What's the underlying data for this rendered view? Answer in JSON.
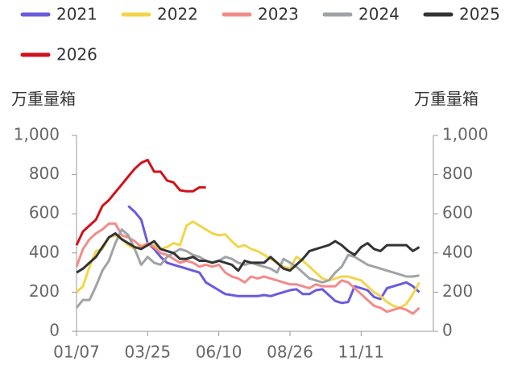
{
  "chart_data": {
    "type": "line",
    "ylabel": "万重量箱",
    "y2label": "万重量箱",
    "categories": [
      "01/07",
      null,
      null,
      null,
      null,
      null,
      null,
      null,
      null,
      null,
      null,
      "03/25",
      null,
      null,
      null,
      null,
      null,
      null,
      null,
      null,
      null,
      null,
      "06/10",
      null,
      null,
      null,
      null,
      null,
      null,
      null,
      null,
      null,
      null,
      "08/26",
      null,
      null,
      null,
      null,
      null,
      null,
      null,
      null,
      null,
      null,
      "11/11",
      null,
      null,
      null,
      null,
      null,
      null,
      null,
      null,
      null
    ],
    "ylim": [
      0,
      1000
    ],
    "yticks": [
      0,
      200,
      400,
      600,
      800,
      {
        "value": 1000,
        "label": "1,000"
      }
    ],
    "y2lim": [
      0,
      1000
    ],
    "y2ticks": [
      0,
      200,
      400,
      600,
      800,
      {
        "value": 1000,
        "label": "1,000"
      }
    ],
    "grid": false,
    "series": [
      {
        "name": "2021",
        "color": "#6a5ae0",
        "values": [
          null,
          null,
          null,
          null,
          null,
          null,
          null,
          null,
          640,
          610,
          570,
          450,
          420,
          380,
          350,
          340,
          330,
          320,
          310,
          300,
          250,
          230,
          210,
          190,
          185,
          180,
          180,
          180,
          180,
          185,
          180,
          190,
          200,
          210,
          215,
          190,
          190,
          210,
          215,
          185,
          155,
          145,
          150,
          230,
          220,
          210,
          175,
          165,
          220,
          230,
          240,
          250,
          230,
          200
        ]
      },
      {
        "name": "2022",
        "color": "#f2d54a",
        "values": [
          200,
          230,
          330,
          410,
          420,
          480,
          490,
          470,
          440,
          420,
          440,
          440,
          440,
          420,
          430,
          450,
          440,
          540,
          560,
          540,
          520,
          500,
          490,
          495,
          460,
          430,
          440,
          420,
          410,
          390,
          370,
          350,
          330,
          320,
          380,
          360,
          330,
          300,
          270,
          260,
          270,
          280,
          280,
          270,
          260,
          230,
          200,
          180,
          150,
          130,
          120,
          140,
          190,
          250
        ]
      },
      {
        "name": "2023",
        "color": "#f28b8b",
        "values": [
          330,
          420,
          470,
          500,
          520,
          550,
          550,
          490,
          480,
          460,
          430,
          450,
          430,
          400,
          390,
          370,
          350,
          360,
          350,
          330,
          340,
          330,
          340,
          300,
          280,
          270,
          250,
          280,
          270,
          280,
          270,
          260,
          250,
          240,
          240,
          230,
          220,
          240,
          230,
          230,
          230,
          260,
          250,
          220,
          190,
          160,
          130,
          120,
          100,
          110,
          120,
          110,
          90,
          120
        ]
      },
      {
        "name": "2024",
        "color": "#a0a3a6",
        "values": [
          120,
          160,
          160,
          230,
          310,
          360,
          450,
          520,
          490,
          420,
          340,
          380,
          350,
          340,
          380,
          400,
          420,
          410,
          390,
          380,
          360,
          350,
          360,
          380,
          370,
          350,
          340,
          350,
          340,
          330,
          320,
          300,
          370,
          350,
          330,
          300,
          270,
          260,
          250,
          260,
          300,
          330,
          390,
          380,
          360,
          340,
          330,
          320,
          310,
          300,
          290,
          280,
          280,
          285
        ]
      },
      {
        "name": "2025",
        "color": "#333333",
        "values": [
          300,
          320,
          350,
          380,
          430,
          480,
          500,
          470,
          450,
          430,
          420,
          440,
          460,
          420,
          410,
          400,
          370,
          370,
          380,
          360,
          360,
          350,
          360,
          350,
          340,
          310,
          360,
          350,
          350,
          350,
          380,
          350,
          320,
          310,
          340,
          370,
          410,
          420,
          430,
          440,
          460,
          440,
          410,
          390,
          430,
          450,
          420,
          410,
          440,
          440,
          440,
          440,
          410,
          430
        ]
      },
      {
        "name": "2026",
        "color": "#d0121b",
        "values": [
          440,
          510,
          540,
          570,
          640,
          670,
          710,
          750,
          790,
          830,
          860,
          875,
          815,
          815,
          770,
          760,
          720,
          715,
          715,
          735,
          735,
          null,
          null,
          null,
          null,
          null,
          null,
          null,
          null,
          null,
          null,
          null,
          null,
          null,
          null,
          null,
          null,
          null,
          null,
          null,
          null,
          null,
          null,
          null,
          null,
          null,
          null,
          null,
          null,
          null,
          null,
          null,
          null,
          null
        ]
      }
    ]
  }
}
